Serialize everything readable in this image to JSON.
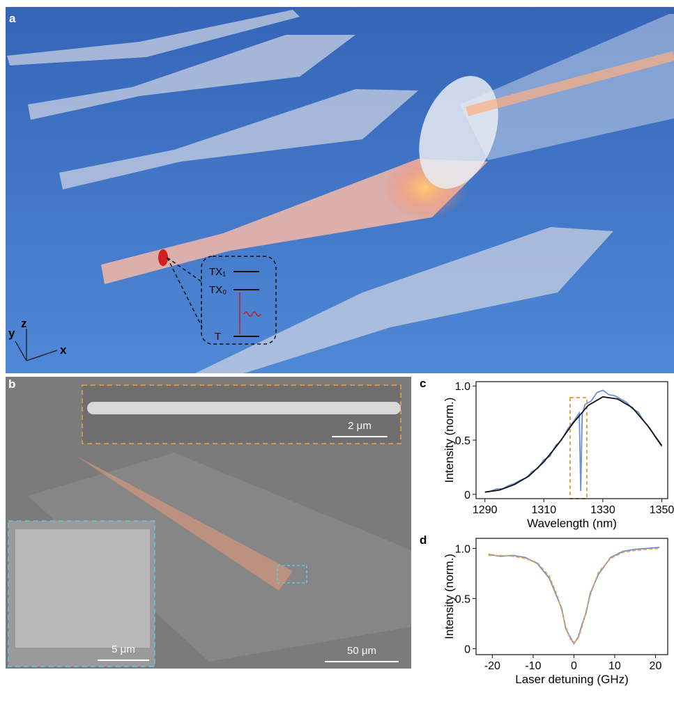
{
  "figure": {
    "panel_a": {
      "label": "a",
      "levels": [
        "TX₁",
        "TX₀",
        "T"
      ],
      "axes": [
        "y",
        "z",
        "x"
      ]
    },
    "panel_b": {
      "label": "b",
      "scale_bars": [
        "2 μm",
        "5 μm",
        "50 μm"
      ]
    }
  },
  "chart_data": [
    {
      "type": "line",
      "panel_label": "c",
      "xlabel": "Wavelength (nm)",
      "ylabel": "Intensity (norm.)",
      "xlim": [
        1287,
        1352
      ],
      "ylim": [
        -0.04,
        1.04
      ],
      "xticks": [
        1290,
        1310,
        1330,
        1350
      ],
      "yticks": [
        0,
        0.5,
        {
          "value": 1,
          "label": "1.0"
        }
      ],
      "series": [
        {
          "color": "#6a8fd4",
          "style": "solid",
          "x": [
            1290,
            1292,
            1294,
            1296,
            1298,
            1300,
            1302,
            1304,
            1306,
            1308,
            1310,
            1312,
            1314,
            1316,
            1318,
            1320,
            1322,
            1322.5,
            1323,
            1324,
            1326,
            1328,
            1330,
            1332,
            1334,
            1336,
            1338,
            1340,
            1342,
            1344,
            1346,
            1348,
            1350
          ],
          "values": [
            0.02,
            0.03,
            0.05,
            0.05,
            0.08,
            0.1,
            0.13,
            0.15,
            0.21,
            0.24,
            0.32,
            0.35,
            0.45,
            0.5,
            0.6,
            0.67,
            0.75,
            0.03,
            0.74,
            0.83,
            0.86,
            0.94,
            0.96,
            0.92,
            0.91,
            0.88,
            0.85,
            0.79,
            0.76,
            0.67,
            0.61,
            0.52,
            0.44
          ]
        },
        {
          "color": "#111111",
          "style": "solid",
          "x": [
            1290,
            1295,
            1300,
            1305,
            1310,
            1315,
            1320,
            1325,
            1330,
            1335,
            1340,
            1345,
            1350
          ],
          "values": [
            0.02,
            0.04,
            0.09,
            0.17,
            0.3,
            0.47,
            0.66,
            0.82,
            0.9,
            0.88,
            0.8,
            0.64,
            0.45
          ]
        }
      ]
    },
    {
      "type": "line",
      "panel_label": "d",
      "xlabel": "Laser detuning (GHz)",
      "ylabel": "Intensity (norm.)",
      "xlim": [
        -24,
        23
      ],
      "ylim": [
        -0.06,
        1.1
      ],
      "xticks": [
        -20,
        -10,
        0,
        10,
        20
      ],
      "yticks": [
        0,
        0.5,
        {
          "value": 1,
          "label": "1.0"
        }
      ],
      "series": [
        {
          "color": "#6a8fd4",
          "style": "solid",
          "x": [
            -21,
            -18,
            -15,
            -12,
            -9,
            -6,
            -4,
            -3,
            -2,
            -1,
            0,
            1,
            2,
            3,
            4,
            6,
            9,
            12,
            15,
            18,
            21
          ],
          "values": [
            0.94,
            0.92,
            0.93,
            0.91,
            0.85,
            0.7,
            0.5,
            0.4,
            0.2,
            0.12,
            0.05,
            0.11,
            0.24,
            0.36,
            0.55,
            0.74,
            0.91,
            0.97,
            0.99,
            1.0,
            1.01
          ]
        },
        {
          "color": "#f0a048",
          "style": "dashed",
          "x": [
            -21,
            -18,
            -15,
            -12,
            -9,
            -6,
            -4,
            -3,
            -2,
            -1,
            0,
            1,
            2,
            3,
            4,
            6,
            9,
            12,
            15,
            18,
            21
          ],
          "values": [
            0.93,
            0.93,
            0.92,
            0.9,
            0.86,
            0.72,
            0.52,
            0.38,
            0.22,
            0.1,
            0.06,
            0.1,
            0.22,
            0.38,
            0.53,
            0.76,
            0.9,
            0.96,
            0.98,
            0.99,
            1.0
          ]
        }
      ]
    }
  ]
}
